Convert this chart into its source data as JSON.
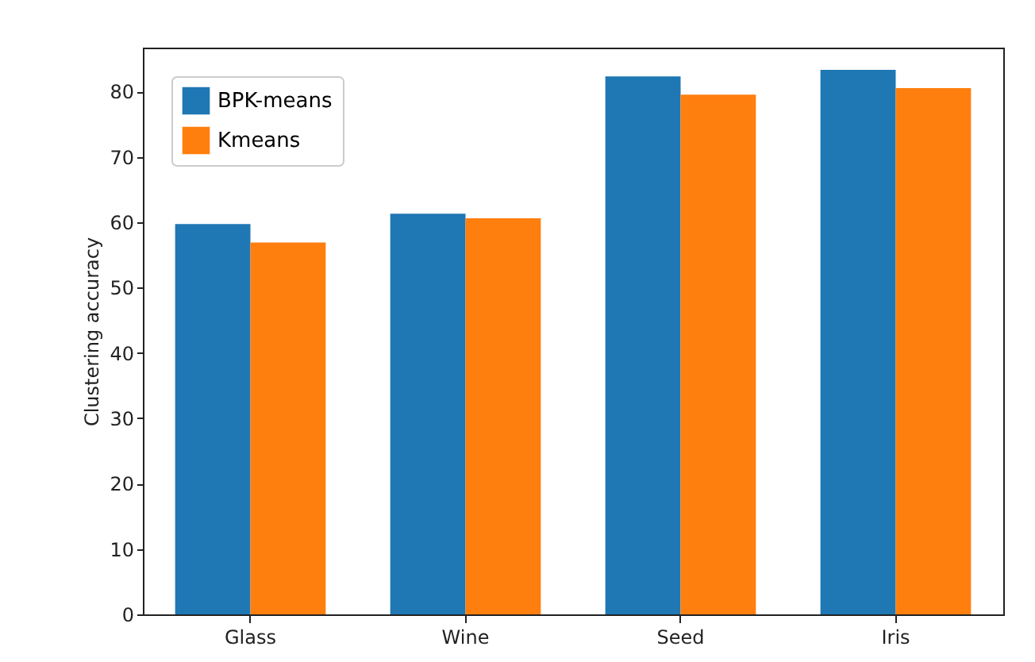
{
  "chart_data": {
    "type": "bar",
    "ylabel": "Clustering accuracy",
    "categories": [
      "Glass",
      "Wine",
      "Seed",
      "Iris"
    ],
    "series": [
      {
        "name": "BPK-means",
        "color": "#1f77b4",
        "values": [
          59.7,
          61.3,
          82.3,
          83.3
        ]
      },
      {
        "name": "Kmeans",
        "color": "#ff7f0e",
        "values": [
          56.9,
          60.6,
          79.5,
          80.5
        ]
      }
    ],
    "ylim": [
      0,
      86.7
    ],
    "yticks": [
      0,
      10,
      20,
      30,
      40,
      50,
      60,
      70,
      80
    ],
    "grid": false,
    "legend": "top left"
  }
}
